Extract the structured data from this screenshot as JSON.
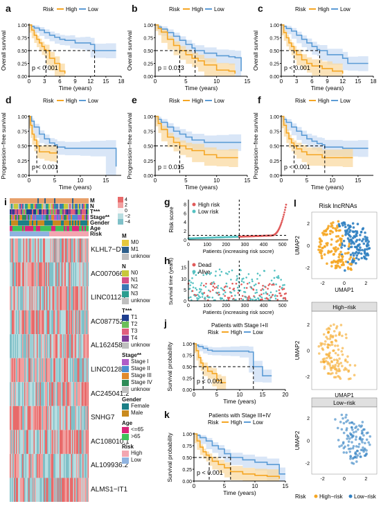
{
  "panel_labels": {
    "a": "a",
    "b": "b",
    "c": "c",
    "d": "d",
    "e": "e",
    "f": "f",
    "g": "g",
    "h": "h",
    "i": "i",
    "j": "j",
    "k": "k",
    "l": "l"
  },
  "colors": {
    "high": "#f5a623",
    "low": "#5b9bd5",
    "high_fill": "#f9d79b",
    "low_fill": "#c9dcf3",
    "dead": "#e05a5a",
    "alive": "#55c1c1"
  },
  "km_legend": {
    "title": "Risk",
    "high": "High",
    "low": "Low"
  },
  "chart_data": [
    {
      "id": "a",
      "type": "line",
      "xlabel": "Time (years)",
      "ylabel": "Overall survival",
      "pvalue": "p < 0.001",
      "xticks": [
        0,
        3,
        6,
        9,
        12,
        15,
        18
      ],
      "yticks": [
        "0.00",
        "0.25",
        "0.50",
        "0.75",
        "1.00"
      ],
      "xlim": [
        0,
        18
      ],
      "ylim": [
        0,
        1
      ],
      "median_high": 3.3,
      "median_low": 12.8,
      "series": [
        {
          "name": "High",
          "x": [
            0,
            0.5,
            1,
            1.5,
            2,
            2.5,
            3,
            3.3,
            4,
            5,
            6,
            7
          ],
          "values": [
            1,
            0.9,
            0.8,
            0.72,
            0.65,
            0.58,
            0.52,
            0.5,
            0.35,
            0.25,
            0.1,
            0.05
          ]
        },
        {
          "name": "Low",
          "x": [
            0,
            0.5,
            1,
            2,
            3,
            4,
            5,
            6,
            7,
            8,
            9,
            10,
            11,
            12,
            12.8,
            15,
            17
          ],
          "values": [
            1,
            0.97,
            0.94,
            0.9,
            0.85,
            0.8,
            0.76,
            0.72,
            0.7,
            0.7,
            0.65,
            0.65,
            0.65,
            0.62,
            0.5,
            0.5,
            0.5
          ]
        }
      ]
    },
    {
      "id": "b",
      "type": "line",
      "xlabel": "Time (years)",
      "ylabel": "Overall survival",
      "pvalue": "p = 0.013",
      "xticks": [
        0,
        5,
        10,
        15
      ],
      "yticks": [
        "0.00",
        "0.25",
        "0.50",
        "0.75",
        "1.00"
      ],
      "xlim": [
        0,
        15
      ],
      "ylim": [
        0,
        1
      ],
      "median_high": 4.0,
      "median_low": 6.5,
      "series": [
        {
          "name": "High",
          "x": [
            0,
            0.5,
            1,
            2,
            3,
            4,
            5,
            6,
            7,
            8,
            10,
            12,
            13
          ],
          "values": [
            1,
            0.93,
            0.86,
            0.72,
            0.6,
            0.5,
            0.42,
            0.35,
            0.3,
            0.22,
            0.12,
            0.1,
            0.05
          ]
        },
        {
          "name": "Low",
          "x": [
            0,
            0.5,
            1,
            2,
            3,
            4,
            5,
            6,
            6.5,
            8,
            10,
            12,
            13,
            14
          ],
          "values": [
            1,
            0.96,
            0.92,
            0.85,
            0.78,
            0.7,
            0.62,
            0.55,
            0.5,
            0.45,
            0.4,
            0.38,
            0.36,
            0.1
          ]
        }
      ]
    },
    {
      "id": "c",
      "type": "line",
      "xlabel": "Time (years)",
      "ylabel": "Overall survival",
      "pvalue": "p < 0.001",
      "xticks": [
        0,
        3,
        6,
        9,
        12,
        15,
        18
      ],
      "yticks": [
        "0.00",
        "0.25",
        "0.50",
        "0.75",
        "1.00"
      ],
      "xlim": [
        0,
        18
      ],
      "ylim": [
        0,
        1
      ],
      "median_high": 2.5,
      "median_low": 7.5,
      "series": [
        {
          "name": "High",
          "x": [
            0,
            0.5,
            1,
            1.5,
            2,
            2.5,
            3,
            4,
            5,
            6,
            8,
            10,
            12
          ],
          "values": [
            1,
            0.85,
            0.75,
            0.65,
            0.58,
            0.5,
            0.42,
            0.32,
            0.25,
            0.2,
            0.15,
            0.1,
            0.05
          ]
        },
        {
          "name": "Low",
          "x": [
            0,
            0.5,
            1,
            2,
            3,
            4,
            5,
            6,
            7,
            7.5,
            9,
            12,
            13,
            15,
            17
          ],
          "values": [
            1,
            0.97,
            0.93,
            0.88,
            0.8,
            0.72,
            0.65,
            0.58,
            0.52,
            0.5,
            0.42,
            0.35,
            0.25,
            0.25,
            0.25
          ]
        }
      ]
    },
    {
      "id": "d",
      "type": "line",
      "xlabel": "Time (years)",
      "ylabel": "Progression−free survival",
      "pvalue": "p < 0.001",
      "xticks": [
        0,
        5,
        10,
        15
      ],
      "yticks": [
        "0.00",
        "0.25",
        "0.50",
        "0.75",
        "1.00"
      ],
      "xlim": [
        0,
        18
      ],
      "ylim": [
        0,
        1
      ],
      "median_high": 1.5,
      "median_low": 5.5,
      "series": [
        {
          "name": "High",
          "x": [
            0,
            0.3,
            0.6,
            1,
            1.5,
            2,
            3,
            4,
            5,
            5.5
          ],
          "values": [
            1,
            0.85,
            0.7,
            0.6,
            0.5,
            0.4,
            0.4,
            0.38,
            0.38,
            0.38
          ]
        },
        {
          "name": "Low",
          "x": [
            0,
            0.5,
            1,
            2,
            3,
            4,
            5,
            5.5,
            7,
            10,
            12,
            15,
            17
          ],
          "values": [
            1,
            0.92,
            0.82,
            0.7,
            0.62,
            0.55,
            0.52,
            0.48,
            0.46,
            0.46,
            0.46,
            0.46,
            0.15
          ]
        }
      ]
    },
    {
      "id": "e",
      "type": "line",
      "xlabel": "Time (years)",
      "ylabel": "Progression−free survival",
      "pvalue": "p = 0.015",
      "xticks": [
        0,
        5,
        10,
        15
      ],
      "yticks": [
        "0.00",
        "0.25",
        "0.50",
        "0.75",
        "1.00"
      ],
      "xlim": [
        0,
        15
      ],
      "ylim": [
        0,
        1
      ],
      "median_high": 4.0,
      "series": [
        {
          "name": "High",
          "x": [
            0,
            0.5,
            1,
            2,
            3,
            4,
            5,
            6,
            8,
            10,
            12,
            13.5
          ],
          "values": [
            1,
            0.88,
            0.78,
            0.65,
            0.56,
            0.5,
            0.45,
            0.42,
            0.35,
            0.3,
            0.3,
            0.3
          ]
        },
        {
          "name": "Low",
          "x": [
            0,
            0.5,
            1,
            2,
            3,
            4,
            5,
            6,
            8,
            10,
            12,
            14
          ],
          "values": [
            1,
            0.95,
            0.9,
            0.82,
            0.75,
            0.7,
            0.65,
            0.6,
            0.56,
            0.56,
            0.56,
            0.56
          ]
        }
      ]
    },
    {
      "id": "f",
      "type": "line",
      "xlabel": "Time (years)",
      "ylabel": "Progression−free survival",
      "pvalue": "p < 0.001",
      "xticks": [
        0,
        5,
        10,
        15
      ],
      "yticks": [
        "0.00",
        "0.25",
        "0.50",
        "0.75",
        "1.00"
      ],
      "xlim": [
        0,
        18
      ],
      "ylim": [
        0,
        1
      ],
      "median_high": 2.5,
      "median_low": 8.5,
      "series": [
        {
          "name": "High",
          "x": [
            0,
            0.5,
            1,
            1.5,
            2,
            2.5,
            3,
            4,
            5,
            8,
            12,
            14
          ],
          "values": [
            1,
            0.85,
            0.72,
            0.62,
            0.55,
            0.5,
            0.45,
            0.4,
            0.35,
            0.3,
            0.3,
            0.3
          ]
        },
        {
          "name": "Low",
          "x": [
            0,
            0.5,
            1,
            2,
            3,
            4,
            5,
            6,
            7,
            8,
            8.5,
            12,
            15,
            17
          ],
          "values": [
            1,
            0.95,
            0.9,
            0.82,
            0.75,
            0.68,
            0.62,
            0.58,
            0.54,
            0.52,
            0.48,
            0.46,
            0.46,
            0.46
          ]
        }
      ]
    },
    {
      "id": "j",
      "type": "line",
      "title": "Patients with Stage I+II",
      "xlabel": "Time (years)",
      "ylabel": "Survival probability",
      "pvalue": "p < 0.001",
      "xticks": [
        0,
        5,
        10,
        15,
        20
      ],
      "yticks": [
        "0.00",
        "0.25",
        "0.50",
        "0.75",
        "1.00"
      ],
      "xlim": [
        0,
        20
      ],
      "ylim": [
        0,
        1
      ],
      "median_high": 2.0,
      "median_low": 13.0,
      "series": [
        {
          "name": "High",
          "x": [
            0,
            0.5,
            1,
            1.5,
            2,
            3,
            4,
            5,
            6,
            7
          ],
          "values": [
            1,
            0.85,
            0.7,
            0.58,
            0.5,
            0.4,
            0.35,
            0.2,
            0.15,
            0.15
          ]
        },
        {
          "name": "Low",
          "x": [
            0,
            0.5,
            1,
            2,
            3,
            4,
            6,
            8,
            10,
            12,
            13,
            15,
            17
          ],
          "values": [
            1,
            0.97,
            0.94,
            0.9,
            0.86,
            0.84,
            0.84,
            0.84,
            0.84,
            0.82,
            0.5,
            0.3,
            0.3
          ]
        }
      ]
    },
    {
      "id": "k",
      "type": "line",
      "title": "Patients with Stage III+IV",
      "xlabel": "Time (years)",
      "ylabel": "Survival probability",
      "pvalue": "p < 0.001",
      "xticks": [
        0,
        5,
        10,
        15
      ],
      "yticks": [
        "0.00",
        "0.25",
        "0.50",
        "0.75",
        "1.00"
      ],
      "xlim": [
        0,
        15
      ],
      "ylim": [
        0,
        1
      ],
      "median_high": 2.5,
      "median_low": 6.0,
      "series": [
        {
          "name": "High",
          "x": [
            0,
            0.5,
            1,
            1.5,
            2,
            2.5,
            3,
            4,
            5,
            6,
            8,
            10,
            12,
            14
          ],
          "values": [
            1,
            0.85,
            0.72,
            0.62,
            0.55,
            0.5,
            0.42,
            0.35,
            0.28,
            0.2,
            0.15,
            0.12,
            0.1,
            0.05
          ]
        },
        {
          "name": "Low",
          "x": [
            0,
            0.5,
            1,
            2,
            3,
            4,
            5,
            6,
            8,
            10,
            12,
            14,
            15
          ],
          "values": [
            1,
            0.97,
            0.92,
            0.85,
            0.75,
            0.68,
            0.58,
            0.5,
            0.45,
            0.4,
            0.35,
            0.15,
            0.15
          ]
        }
      ]
    },
    {
      "id": "g",
      "type": "scatter",
      "xlabel": "Patients (increasing risk socre)",
      "ylabel": "Risk score",
      "xticks": [
        0,
        100,
        200,
        300,
        400,
        500
      ],
      "yticks": [
        0,
        2,
        4,
        6,
        8
      ],
      "xlim": [
        0,
        530
      ],
      "ylim": [
        0,
        9
      ],
      "cutoff_x": 270,
      "cutoff_y": 1.0,
      "legend": [
        "High risk",
        "Low risk"
      ]
    },
    {
      "id": "h",
      "type": "scatter",
      "xlabel": "Patients (increasing risk socre)",
      "ylabel": "Survival time (years)",
      "xticks": [
        0,
        100,
        200,
        300,
        400,
        500
      ],
      "yticks": [
        0,
        5,
        10,
        15
      ],
      "xlim": [
        0,
        530
      ],
      "ylim": [
        0,
        18
      ],
      "cutoff_x": 270,
      "legend": [
        "Dead",
        "Alive"
      ]
    },
    {
      "id": "l",
      "type": "scatter",
      "title": "Risk lncRNAs",
      "xlabel": "UMAP1",
      "ylabel": "UMAP2",
      "xticks": [
        -2,
        0,
        2
      ],
      "yticks": [
        -2,
        0,
        2
      ],
      "subtitles": [
        "High−risk",
        "Low−risk"
      ],
      "legend": {
        "title": "Risk",
        "high": "High−risk",
        "low": "Low−risk"
      }
    }
  ],
  "heatmap": {
    "genes": [
      "KLHL7−DT",
      "AC007066.3",
      "LINC01123",
      "AC087752.4",
      "AL162458.1",
      "LINC01281",
      "AC245041.2",
      "SNHG7",
      "AC108010.1",
      "AL109936.2",
      "ALMS1−IT1"
    ],
    "annotation_rows": [
      "M",
      "N",
      "T***",
      "Stage**",
      "Gender",
      "Age",
      "Risk"
    ],
    "scale_ticks": [
      "4",
      "2",
      "0",
      "−2",
      "−4"
    ],
    "legends": [
      {
        "title": "M",
        "items": [
          {
            "label": "M0",
            "color": "#e6c83c"
          },
          {
            "label": "M1",
            "color": "#2d5f8b"
          },
          {
            "label": "unknow",
            "color": "#bfbfbf"
          }
        ]
      },
      {
        "title": "N",
        "items": [
          {
            "label": "N0",
            "color": "#c8c83a"
          },
          {
            "label": "N1",
            "color": "#d45087"
          },
          {
            "label": "N2",
            "color": "#3c78b4"
          },
          {
            "label": "N3",
            "color": "#2a9d8f"
          },
          {
            "label": "unknow",
            "color": "#bfbfbf"
          }
        ]
      },
      {
        "title": "T***",
        "items": [
          {
            "label": "T1",
            "color": "#1f3f8f"
          },
          {
            "label": "T2",
            "color": "#6bbf59"
          },
          {
            "label": "T3",
            "color": "#e0607e"
          },
          {
            "label": "T4",
            "color": "#7d3c98"
          },
          {
            "label": "unknow",
            "color": "#bfbfbf"
          }
        ]
      },
      {
        "title": "Stage**",
        "items": [
          {
            "label": "Stage I",
            "color": "#b05cc7"
          },
          {
            "label": "Stage II",
            "color": "#4a8fd0"
          },
          {
            "label": "Stage III",
            "color": "#e08a2c"
          },
          {
            "label": "Stage IV",
            "color": "#2e8b57"
          },
          {
            "label": "unknow",
            "color": "#bfbfbf"
          }
        ]
      },
      {
        "title": "Gender",
        "items": [
          {
            "label": "Female",
            "color": "#1b7f86"
          },
          {
            "label": "Male",
            "color": "#c98a1e"
          }
        ]
      },
      {
        "title": "Age",
        "items": [
          {
            "label": "<=65",
            "color": "#d8267a"
          },
          {
            "label": ">65",
            "color": "#3fc25a"
          }
        ]
      },
      {
        "title": "Risk",
        "items": [
          {
            "label": "High",
            "color": "#f3a6b0"
          },
          {
            "label": "Low",
            "color": "#8fb3e0"
          }
        ]
      }
    ]
  }
}
